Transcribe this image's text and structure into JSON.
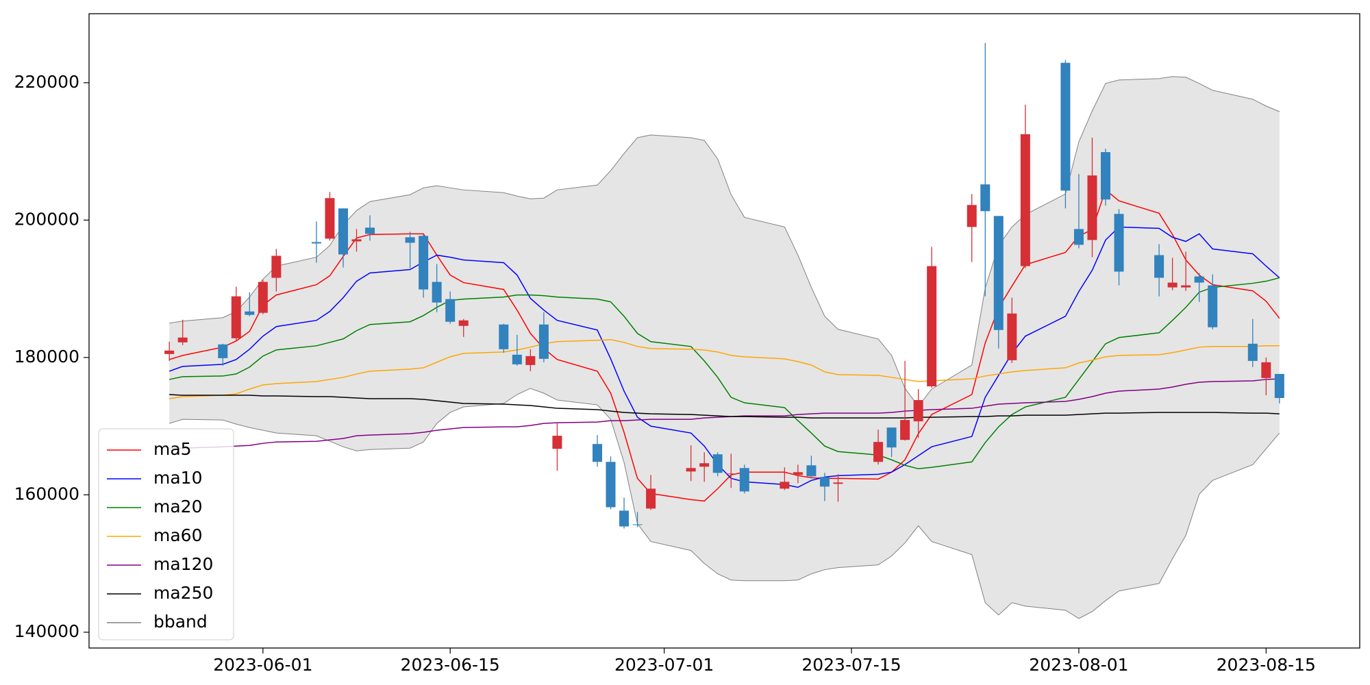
{
  "chart_data": {
    "type": "candlestick",
    "x": [
      "2023-05-25",
      "2023-05-26",
      "2023-05-29",
      "2023-05-30",
      "2023-05-31",
      "2023-06-01",
      "2023-06-02",
      "2023-06-05",
      "2023-06-06",
      "2023-06-07",
      "2023-06-08",
      "2023-06-09",
      "2023-06-12",
      "2023-06-13",
      "2023-06-14",
      "2023-06-15",
      "2023-06-16",
      "2023-06-19",
      "2023-06-20",
      "2023-06-21",
      "2023-06-22",
      "2023-06-23",
      "2023-06-26",
      "2023-06-27",
      "2023-06-28",
      "2023-06-29",
      "2023-06-30",
      "2023-07-03",
      "2023-07-04",
      "2023-07-05",
      "2023-07-06",
      "2023-07-07",
      "2023-07-10",
      "2023-07-11",
      "2023-07-12",
      "2023-07-13",
      "2023-07-14",
      "2023-07-17",
      "2023-07-18",
      "2023-07-19",
      "2023-07-20",
      "2023-07-21",
      "2023-07-24",
      "2023-07-25",
      "2023-07-26",
      "2023-07-27",
      "2023-07-28",
      "2023-07-31",
      "2023-08-01",
      "2023-08-02",
      "2023-08-03",
      "2023-08-04",
      "2023-08-07",
      "2023-08-08",
      "2023-08-09",
      "2023-08-10",
      "2023-08-11",
      "2023-08-14",
      "2023-08-15",
      "2023-08-16"
    ],
    "open": [
      180500,
      182200,
      181900,
      182800,
      186700,
      186500,
      191600,
      196800,
      197300,
      201700,
      196900,
      198900,
      197500,
      197700,
      191000,
      188500,
      184600,
      184800,
      180400,
      178900,
      184800,
      166700,
      167400,
      164800,
      157700,
      155700,
      158000,
      163400,
      164100,
      165900,
      163000,
      163900,
      160900,
      162900,
      164300,
      162600,
      161600,
      164800,
      169800,
      168000,
      170700,
      175800,
      199000,
      205200,
      200600,
      179600,
      193300,
      222900,
      198700,
      197100,
      209900,
      200900,
      194900,
      190200,
      190200,
      191800,
      190500,
      182000,
      177000,
      177600
    ],
    "high": [
      182300,
      185500,
      182000,
      190300,
      189500,
      191300,
      195800,
      199800,
      204100,
      201700,
      198700,
      200700,
      198300,
      197900,
      193600,
      189600,
      185600,
      184900,
      183300,
      181200,
      186600,
      170400,
      168700,
      165600,
      159600,
      157500,
      162900,
      167200,
      166200,
      166200,
      166000,
      164400,
      164000,
      164400,
      165700,
      163200,
      163000,
      169500,
      169800,
      179500,
      175400,
      196100,
      203800,
      225800,
      200600,
      188700,
      216800,
      223300,
      206700,
      212000,
      210400,
      201600,
      196500,
      194500,
      195400,
      192300,
      192100,
      185600,
      180000,
      177600
    ],
    "low": [
      179500,
      181800,
      178800,
      182500,
      186000,
      186300,
      189600,
      193800,
      197000,
      193100,
      195400,
      197000,
      193000,
      188700,
      186600,
      184900,
      183000,
      180700,
      178800,
      178000,
      179300,
      163500,
      164100,
      157900,
      155100,
      155300,
      157800,
      162000,
      161900,
      162700,
      161000,
      160200,
      160700,
      161700,
      162400,
      159100,
      159000,
      164400,
      165500,
      167900,
      168300,
      175600,
      193900,
      188900,
      181300,
      179200,
      193000,
      201700,
      195900,
      194600,
      202100,
      190500,
      188900,
      189800,
      189700,
      188100,
      184100,
      178600,
      174500,
      173300
    ],
    "close": [
      181000,
      182900,
      179900,
      188900,
      186200,
      191000,
      194800,
      196600,
      203200,
      195000,
      197200,
      198000,
      196700,
      189900,
      188000,
      185200,
      185400,
      181200,
      179000,
      180200,
      179800,
      168600,
      164800,
      158200,
      155400,
      155600,
      160900,
      163900,
      164600,
      163200,
      163100,
      160500,
      161900,
      163300,
      162700,
      161200,
      161800,
      167700,
      166900,
      170900,
      173800,
      193300,
      202200,
      201300,
      184000,
      186400,
      212500,
      204300,
      196400,
      206500,
      203000,
      192500,
      191600,
      190900,
      190500,
      190900,
      184400,
      179500,
      179300,
      174100
    ],
    "up_color": "#d62f36",
    "down_color": "#3182bd",
    "series": [
      {
        "name": "ma5",
        "color": "#ff0000",
        "values": [
          179700,
          180300,
          181500,
          182400,
          183800,
          187600,
          189100,
          190600,
          191900,
          194700,
          197400,
          197900,
          198000,
          198000,
          194900,
          192000,
          190900,
          189900,
          186900,
          183500,
          181300,
          179700,
          178000,
          174800,
          169100,
          162400,
          160200,
          159300,
          159100,
          160900,
          162900,
          163300,
          163300,
          162800,
          162500,
          162400,
          162400,
          162300,
          163300,
          165100,
          168900,
          171700,
          174600,
          182100,
          187200,
          190400,
          193500,
          195300,
          197700,
          198600,
          204400,
          202800,
          201000,
          197900,
          194200,
          192000,
          190600,
          189700,
          188200,
          185700
        ]
      },
      {
        "name": "ma10",
        "color": "#0000ff",
        "values": [
          178000,
          178700,
          179000,
          179700,
          181200,
          183100,
          184500,
          185400,
          186700,
          188700,
          191100,
          192300,
          192800,
          193900,
          194900,
          194600,
          194200,
          193800,
          192000,
          188600,
          186900,
          185400,
          184000,
          179800,
          175100,
          171300,
          170000,
          169000,
          167100,
          164400,
          162400,
          161900,
          161500,
          161100,
          162100,
          162600,
          162800,
          163000,
          163300,
          164400,
          165700,
          167000,
          168500,
          174200,
          177400,
          180600,
          183100,
          186000,
          189600,
          192700,
          197100,
          199000,
          198800,
          197500,
          196900,
          198000,
          195800,
          195100,
          193300,
          191600
        ]
      },
      {
        "name": "ma20",
        "color": "#008000",
        "values": [
          176800,
          177200,
          177300,
          177600,
          178600,
          180200,
          181100,
          181700,
          182200,
          182700,
          183900,
          184800,
          185200,
          186100,
          187300,
          188300,
          188500,
          188800,
          189100,
          189100,
          189000,
          188800,
          188500,
          188100,
          186000,
          183500,
          182300,
          181600,
          179500,
          177100,
          174200,
          173400,
          172700,
          170800,
          169000,
          167100,
          166300,
          165800,
          165100,
          164300,
          163800,
          164000,
          164800,
          167600,
          169900,
          171700,
          172800,
          174200,
          176800,
          179400,
          182000,
          182900,
          183600,
          185400,
          187300,
          189500,
          190200,
          190800,
          191100,
          191600
        ]
      },
      {
        "name": "ma60",
        "color": "#ffa500",
        "values": [
          174000,
          174300,
          174500,
          174700,
          175400,
          176000,
          176200,
          176500,
          176800,
          177100,
          177600,
          178000,
          178300,
          178500,
          179300,
          180100,
          180600,
          180800,
          181100,
          181500,
          182000,
          182300,
          182500,
          182600,
          182200,
          181600,
          181300,
          181200,
          181100,
          180800,
          180300,
          180100,
          179800,
          179400,
          178900,
          177900,
          177500,
          177400,
          177100,
          176800,
          176500,
          176600,
          176900,
          177300,
          177600,
          177900,
          178100,
          178500,
          179200,
          179600,
          180100,
          180300,
          180400,
          180700,
          181100,
          181500,
          181600,
          181600,
          181700,
          181700
        ]
      },
      {
        "name": "ma120",
        "color": "#800080",
        "values": [
          166800,
          166800,
          167000,
          167100,
          167200,
          167500,
          167700,
          167800,
          168000,
          168200,
          168600,
          168700,
          168900,
          169100,
          169400,
          169600,
          169800,
          169900,
          169900,
          170100,
          170400,
          170500,
          170600,
          170800,
          170800,
          170900,
          171000,
          171000,
          171200,
          171300,
          171400,
          171500,
          171500,
          171700,
          171800,
          171900,
          171900,
          171900,
          172000,
          172200,
          172300,
          172400,
          172600,
          172900,
          173200,
          173300,
          173400,
          173600,
          173900,
          174300,
          174800,
          175100,
          175400,
          175700,
          176100,
          176400,
          176500,
          176600,
          176800,
          176900
        ]
      },
      {
        "name": "ma250",
        "color": "#000000",
        "values": [
          174600,
          174500,
          174500,
          174500,
          174500,
          174400,
          174400,
          174300,
          174300,
          174200,
          174100,
          174000,
          174000,
          173900,
          173700,
          173500,
          173300,
          173200,
          173100,
          173000,
          172800,
          172600,
          172400,
          172200,
          172000,
          171900,
          171800,
          171700,
          171600,
          171500,
          171400,
          171400,
          171300,
          171300,
          171200,
          171200,
          171200,
          171200,
          171200,
          171200,
          171300,
          171300,
          171400,
          171400,
          171500,
          171500,
          171600,
          171600,
          171700,
          171800,
          171900,
          171900,
          172000,
          172000,
          172000,
          172000,
          172000,
          171900,
          171900,
          171800
        ]
      },
      {
        "name": "bband",
        "color": "#808080",
        "fill": "#e5e5e5",
        "upper": [
          185000,
          185300,
          185800,
          186700,
          188800,
          191400,
          193300,
          194600,
          196300,
          199300,
          201400,
          202700,
          203700,
          204700,
          205000,
          204700,
          204400,
          204000,
          203500,
          203100,
          203200,
          204400,
          205100,
          207200,
          209700,
          212000,
          212400,
          212000,
          211600,
          208900,
          203700,
          200400,
          199000,
          194900,
          190200,
          186000,
          184100,
          182700,
          180300,
          175500,
          172900,
          175400,
          178900,
          190100,
          196300,
          199000,
          200800,
          203800,
          211400,
          215900,
          219900,
          220400,
          220600,
          220900,
          220800,
          219900,
          218900,
          217600,
          216600,
          215800
        ],
        "lower": [
          170400,
          171000,
          170900,
          170300,
          169800,
          169400,
          169000,
          168600,
          167800,
          167000,
          166400,
          166600,
          166800,
          167700,
          170400,
          172000,
          172800,
          173300,
          174600,
          175500,
          174800,
          173800,
          173100,
          171000,
          164700,
          155800,
          153200,
          151900,
          150000,
          148500,
          147600,
          147500,
          147500,
          147600,
          148500,
          149100,
          149400,
          149800,
          151100,
          153000,
          155500,
          153200,
          151300,
          144300,
          142500,
          144300,
          143800,
          143200,
          142000,
          143000,
          144600,
          146000,
          147100,
          150700,
          154100,
          160100,
          162100,
          164400,
          166700,
          169000
        ]
      }
    ],
    "xlim": [
      "2023-05-19",
      "2023-08-22"
    ],
    "xticks": [
      "2023-06-01",
      "2023-06-15",
      "2023-07-01",
      "2023-07-15",
      "2023-08-01",
      "2023-08-15"
    ],
    "ylim": [
      137700,
      230050
    ],
    "yticks": [
      140000,
      160000,
      180000,
      200000,
      220000
    ],
    "legend": "lower left"
  }
}
